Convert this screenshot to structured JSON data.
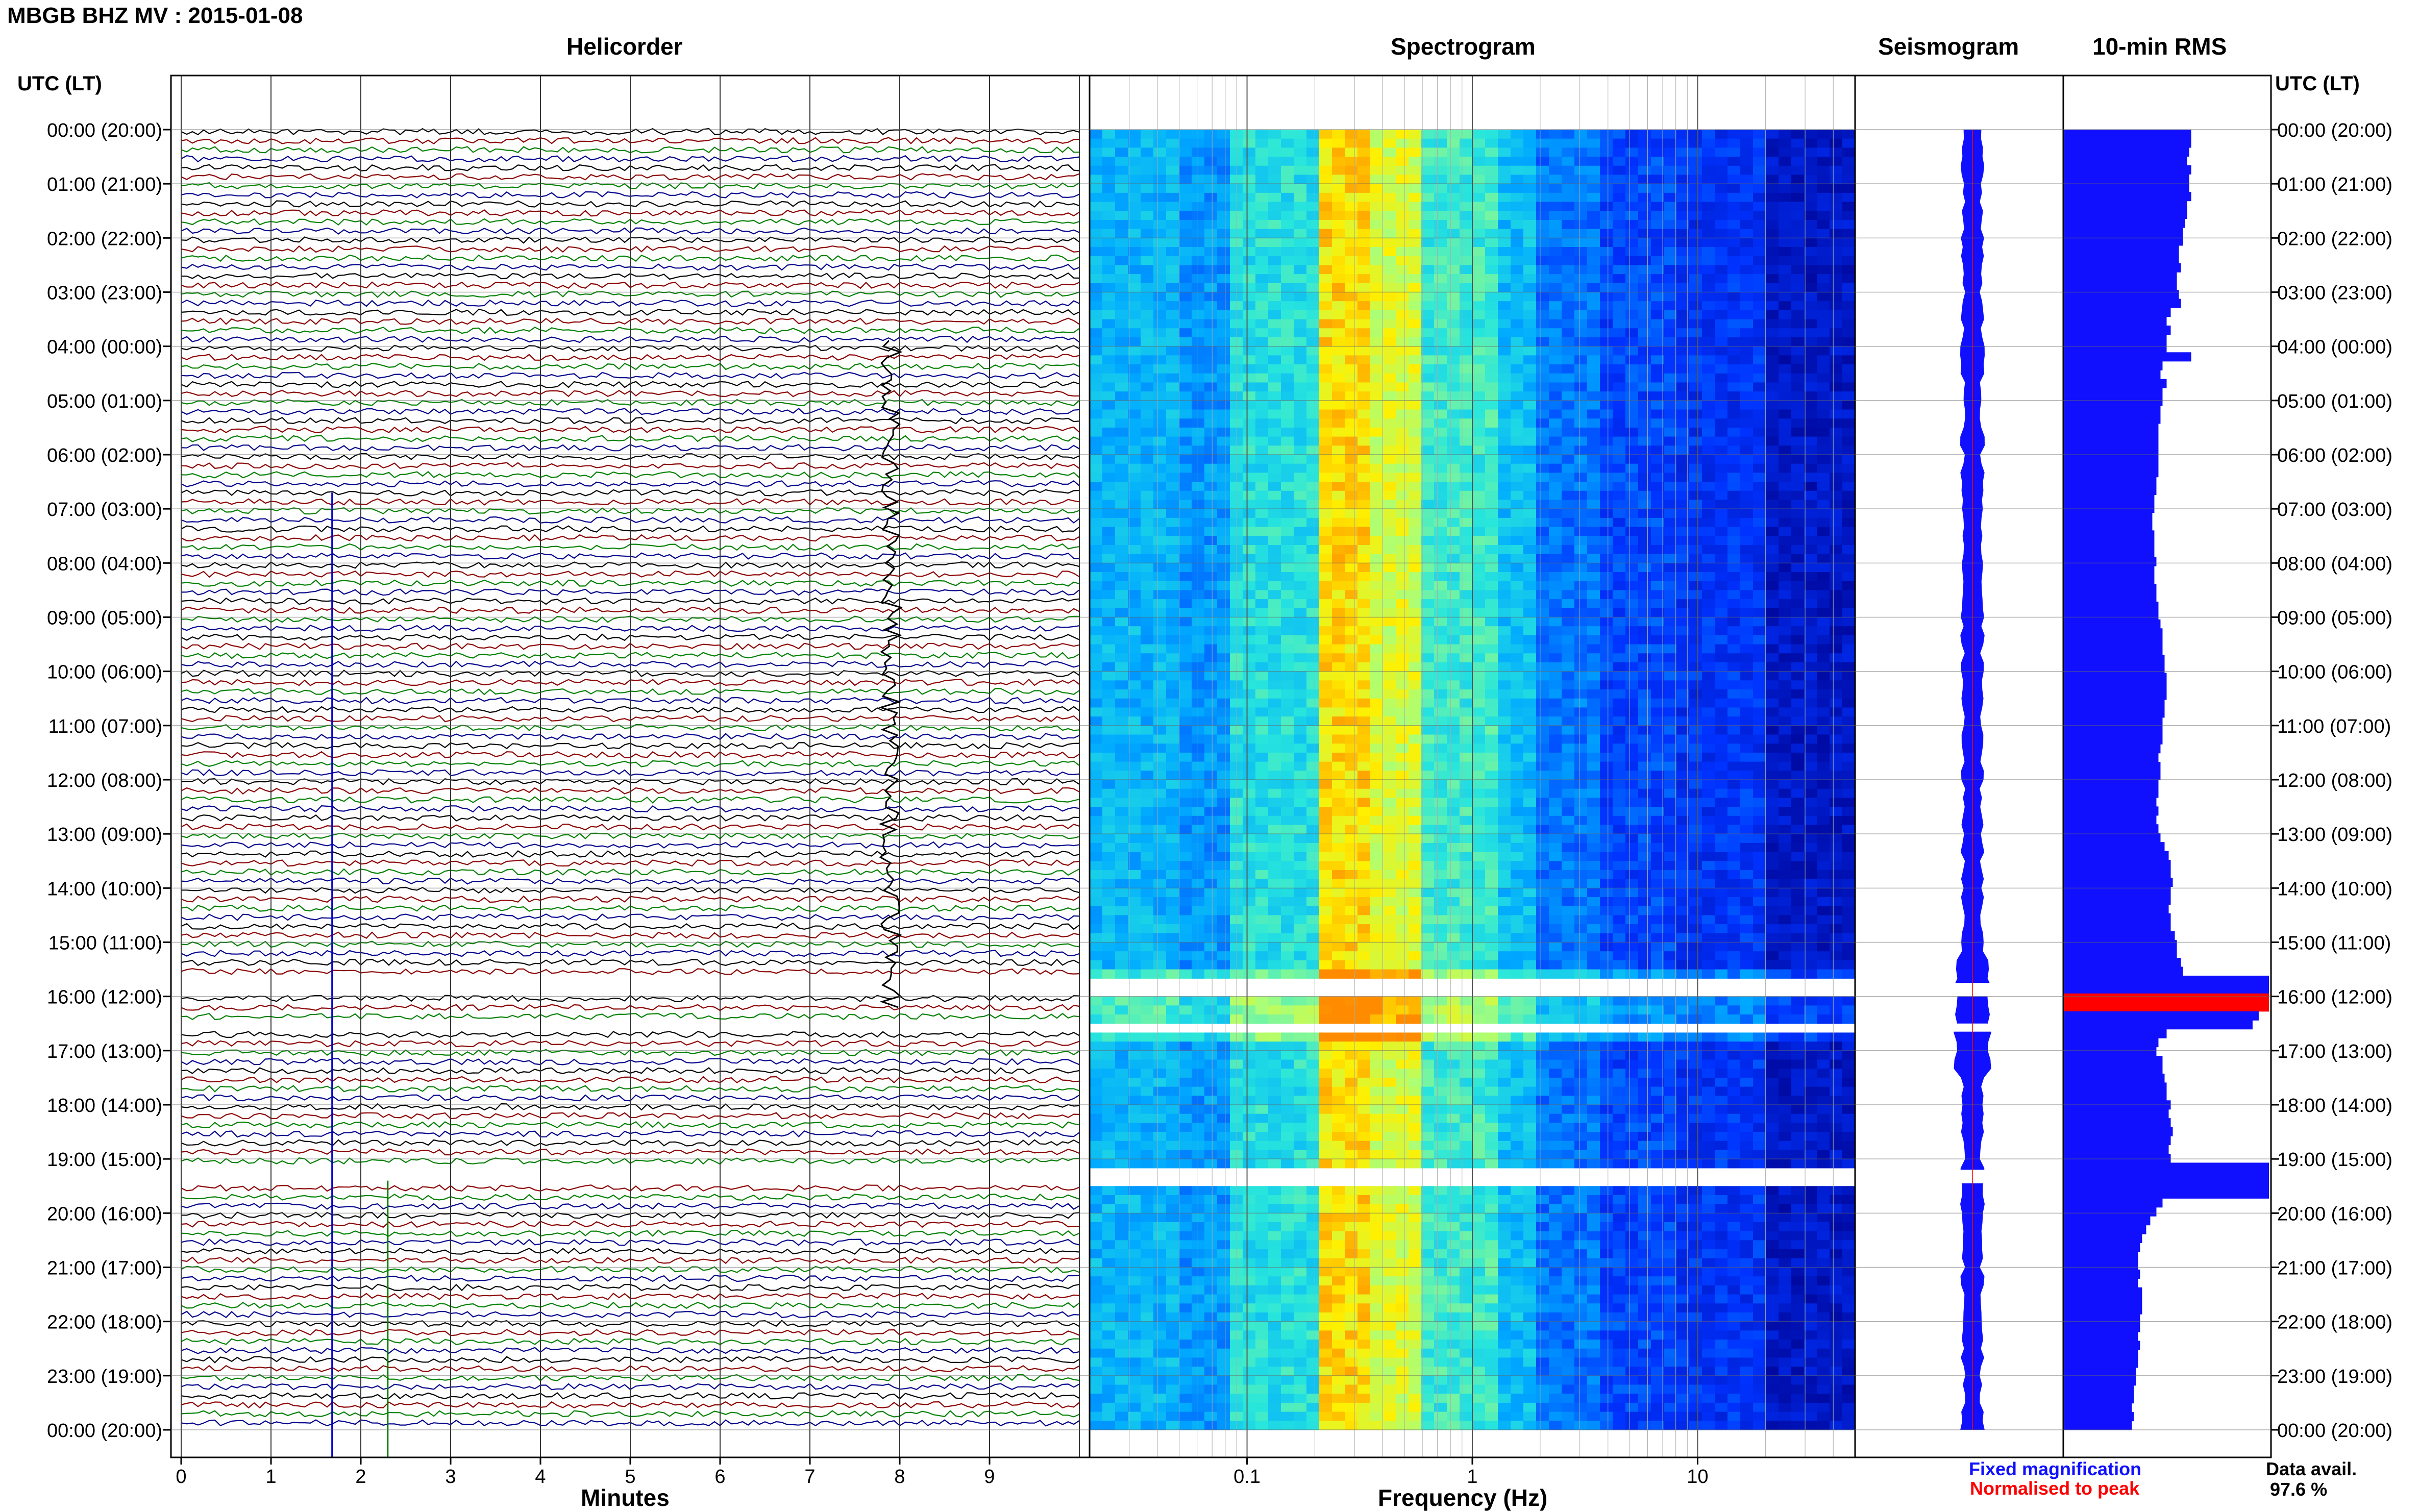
{
  "header": {
    "station_title": "MBGB BHZ MV : 2015-01-08",
    "time_axis_title": "UTC (LT)"
  },
  "panels": {
    "helicorder": "Helicorder",
    "spectrogram": "Spectrogram",
    "seismogram": "Seismogram",
    "rms": "10-min RMS"
  },
  "x_axes": {
    "minutes_label": "Minutes",
    "frequency_label": "Frequency (Hz)",
    "minutes_ticks": [
      "0",
      "1",
      "2",
      "3",
      "4",
      "5",
      "6",
      "7",
      "8",
      "9"
    ],
    "frequency_ticks": [
      "0.1",
      "1",
      "10"
    ]
  },
  "legend": {
    "fixed": "Fixed magnification",
    "normalised": "Normalised to peak",
    "fixed_color": "#1010ff",
    "normalised_color": "#ff0000",
    "avail_label": "Data avail.",
    "avail_value": "97.6 %"
  },
  "chart_data": {
    "type": "heatmap",
    "time_labels": [
      "00:00 (20:00)",
      "01:00 (21:00)",
      "02:00 (22:00)",
      "03:00 (23:00)",
      "04:00 (00:00)",
      "05:00 (01:00)",
      "06:00 (02:00)",
      "07:00 (03:00)",
      "08:00 (04:00)",
      "09:00 (05:00)",
      "10:00 (06:00)",
      "11:00 (07:00)",
      "12:00 (08:00)",
      "13:00 (09:00)",
      "14:00 (10:00)",
      "15:00 (11:00)",
      "16:00 (12:00)",
      "17:00 (13:00)",
      "18:00 (14:00)",
      "19:00 (15:00)",
      "20:00 (16:00)",
      "21:00 (17:00)",
      "22:00 (18:00)",
      "23:00 (19:00)",
      "00:00 (20:00)"
    ],
    "helicorder_minutes_range": [
      0,
      10
    ],
    "trace_colors": [
      "#000000",
      "#8b0000",
      "#008000",
      "#00008b"
    ],
    "frequency_range_hz": [
      0.02,
      50
    ],
    "frequency_scale": "log",
    "data_gaps_utc_hours": [
      [
        15.75,
        16.0
      ],
      [
        16.5,
        16.65
      ],
      [
        19.2,
        19.45
      ]
    ],
    "rms_10min": [
      0.62,
      0.62,
      0.61,
      0.6,
      0.62,
      0.61,
      0.61,
      0.62,
      0.6,
      0.6,
      0.59,
      0.58,
      0.58,
      0.56,
      0.56,
      0.57,
      0.55,
      0.55,
      0.56,
      0.57,
      0.52,
      0.5,
      0.52,
      0.5,
      0.5,
      0.62,
      0.48,
      0.47,
      0.5,
      0.48,
      0.48,
      0.47,
      0.47,
      0.46,
      0.46,
      0.46,
      0.46,
      0.46,
      0.46,
      0.45,
      0.45,
      0.44,
      0.44,
      0.43,
      0.43,
      0.44,
      0.44,
      0.44,
      0.45,
      0.44,
      0.44,
      0.45,
      0.45,
      0.46,
      0.46,
      0.47,
      0.48,
      0.48,
      0.48,
      0.49,
      0.49,
      0.5,
      0.5,
      0.5,
      0.49,
      0.49,
      0.48,
      0.48,
      0.48,
      0.47,
      0.46,
      0.47,
      0.47,
      0.46,
      0.46,
      0.45,
      0.46,
      0.45,
      0.46,
      0.47,
      0.49,
      0.51,
      0.52,
      0.52,
      0.53,
      0.52,
      0.52,
      0.51,
      0.52,
      0.52,
      0.54,
      0.55,
      0.55,
      0.57,
      0.58,
      1.0,
      1.0,
      1.0,
      1.0,
      0.95,
      0.92,
      0.5,
      0.46,
      0.45,
      0.48,
      0.48,
      0.49,
      0.5,
      0.5,
      0.52,
      0.51,
      0.52,
      0.53,
      0.52,
      0.51,
      0.52,
      1.0,
      1.0,
      1.0,
      1.0,
      0.48,
      0.45,
      0.42,
      0.4,
      0.38,
      0.37,
      0.36,
      0.36,
      0.37,
      0.36,
      0.38,
      0.38,
      0.38,
      0.37,
      0.37,
      0.36,
      0.37,
      0.36,
      0.36,
      0.35,
      0.35,
      0.34,
      0.34,
      0.33,
      0.34,
      0.33
    ]
  }
}
